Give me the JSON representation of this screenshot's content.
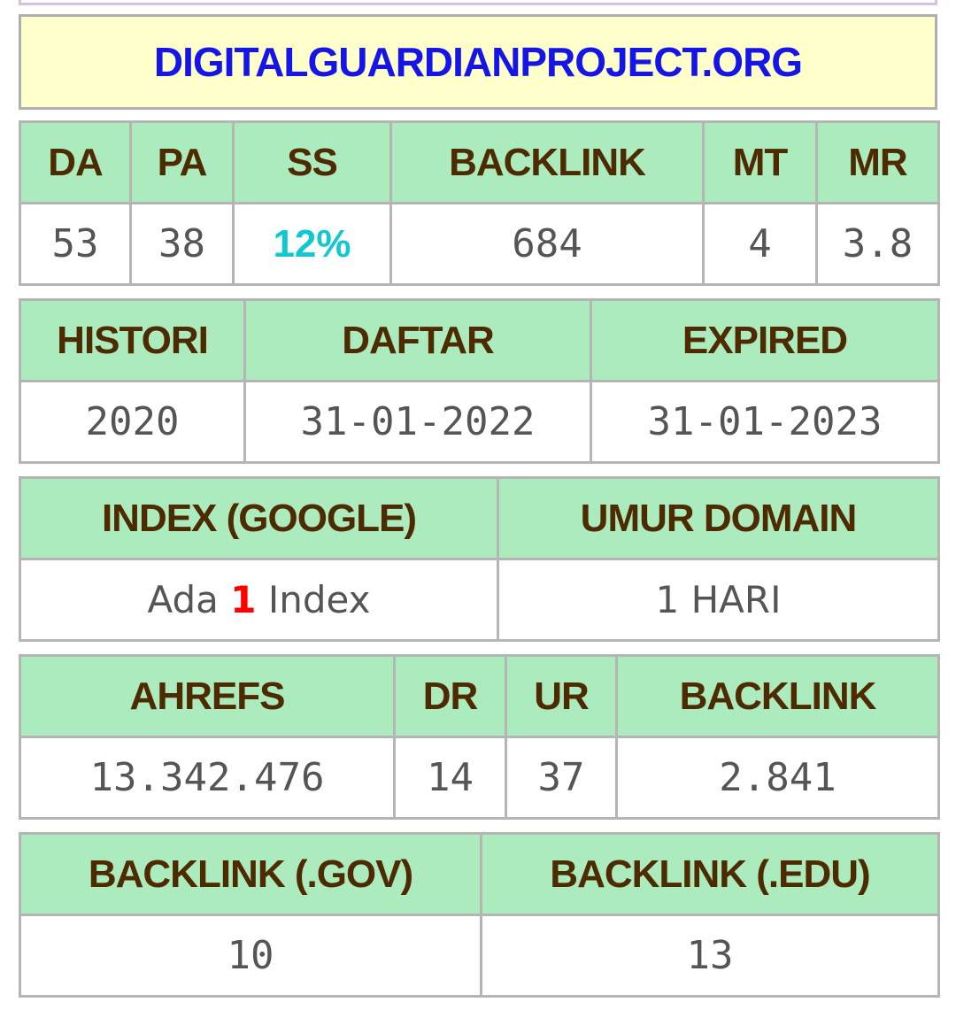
{
  "domain": "DIGITALGUARDIANPROJECT.ORG",
  "moz": {
    "headers": [
      "DA",
      "PA",
      "SS",
      "BACKLINK",
      "MT",
      "MR"
    ],
    "values": [
      "53",
      "38",
      "12%",
      "684",
      "4",
      "3.8"
    ]
  },
  "dates": {
    "headers": [
      "HISTORI",
      "DAFTAR",
      "EXPIRED"
    ],
    "values": [
      "2020",
      "31-01-2022",
      "31-01-2023"
    ]
  },
  "index": {
    "headers": [
      "INDEX (GOOGLE)",
      "UMUR DOMAIN"
    ],
    "index_prefix": "Ada",
    "index_count": "1",
    "index_suffix": "Index",
    "umur": "1 HARI"
  },
  "ahrefs": {
    "headers": [
      "AHREFS",
      "DR",
      "UR",
      "BACKLINK"
    ],
    "values": [
      "13.342.476",
      "14",
      "37",
      "2.841"
    ]
  },
  "special_backlinks": {
    "headers": [
      "BACKLINK (.GOV)",
      "BACKLINK (.EDU)"
    ],
    "values": [
      "10",
      "13"
    ]
  },
  "colors": {
    "header_bg": "#acebbd",
    "header_text": "#4d2a00",
    "domain_bg": "#ffffcc",
    "domain_text": "#1515e8",
    "ss_value": "#12c8d0",
    "index_count": "#ff0000"
  }
}
